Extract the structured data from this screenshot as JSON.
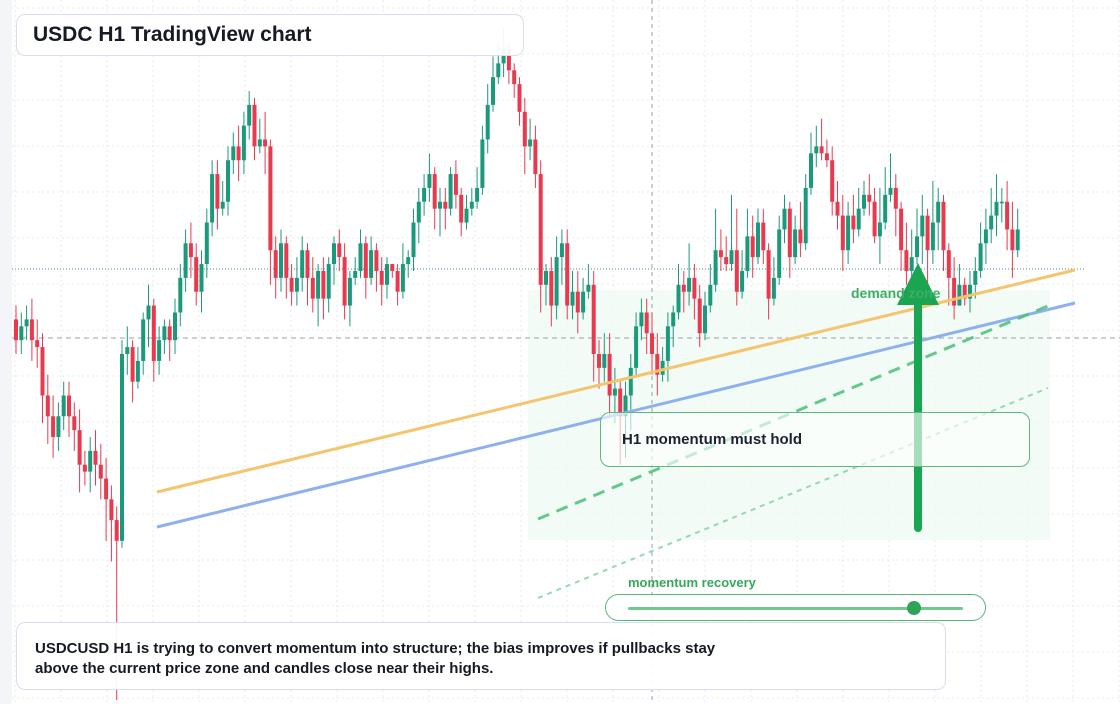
{
  "header": {
    "title": "USDC H1 TradingView chart"
  },
  "annotations": {
    "zone_label": "demand zone",
    "momentum_note": "H1 momentum must hold",
    "recovery_label": "momentum recovery"
  },
  "summary": {
    "line1": "USDCUSD H1 is trying to convert momentum into structure; the bias improves if pullbacks stay",
    "line2": "above the current price zone and candles close near their highs."
  },
  "indicators": {
    "recovery_level": 0.85
  },
  "colors": {
    "bull": "#1a9a7b",
    "bear": "#e8394f",
    "trend_orange": "#f5c46e",
    "trend_blue": "#8fb0ee",
    "support_green": "#4cc07a",
    "arrow_green": "#1aa552",
    "zone_fill": "#eaf8ee"
  },
  "chart_data": {
    "type": "candlestick",
    "title": "USDC H1 TradingView chart",
    "symbol": "USDCUSD",
    "timeframe": "H1",
    "y_units": "relative price index (no axis labels printed)",
    "ylim": [
      0,
      100
    ],
    "grid": true,
    "legend": "none",
    "current_price": 63,
    "candles": [
      [
        55,
        52,
        57,
        50
      ],
      [
        52,
        54,
        56,
        50
      ],
      [
        54,
        55,
        57,
        52
      ],
      [
        55,
        52,
        58,
        49
      ],
      [
        52,
        51,
        55,
        48
      ],
      [
        51,
        44,
        53,
        40
      ],
      [
        44,
        41,
        47,
        37
      ],
      [
        41,
        38,
        44,
        35
      ],
      [
        38,
        41,
        43,
        36
      ],
      [
        41,
        44,
        46,
        39
      ],
      [
        44,
        41,
        46,
        38
      ],
      [
        41,
        39,
        43,
        36
      ],
      [
        39,
        34,
        42,
        30
      ],
      [
        34,
        33,
        36,
        31
      ],
      [
        33,
        36,
        38,
        30
      ],
      [
        36,
        34,
        39,
        31
      ],
      [
        34,
        32,
        37,
        29
      ],
      [
        32,
        29,
        35,
        23
      ],
      [
        29,
        26,
        31,
        20
      ],
      [
        26,
        23,
        28,
        0
      ],
      [
        23,
        50,
        52,
        22
      ],
      [
        50,
        51,
        54,
        47
      ],
      [
        51,
        46,
        52,
        43
      ],
      [
        46,
        49,
        51,
        45
      ],
      [
        49,
        55,
        56,
        47
      ],
      [
        55,
        57,
        60,
        51
      ],
      [
        57,
        49,
        58,
        46
      ],
      [
        49,
        52,
        54,
        47
      ],
      [
        52,
        54,
        55,
        50
      ],
      [
        54,
        52,
        55,
        49
      ],
      [
        52,
        56,
        58,
        50
      ],
      [
        56,
        61,
        63,
        54
      ],
      [
        61,
        66,
        68,
        59
      ],
      [
        66,
        64,
        69,
        61
      ],
      [
        64,
        59,
        66,
        57
      ],
      [
        59,
        63,
        65,
        56
      ],
      [
        63,
        69,
        71,
        61
      ],
      [
        69,
        76,
        78,
        67
      ],
      [
        76,
        71,
        78,
        68
      ],
      [
        71,
        72,
        75,
        70
      ],
      [
        72,
        78,
        80,
        70
      ],
      [
        78,
        80,
        82,
        76
      ],
      [
        80,
        78,
        83,
        75
      ],
      [
        78,
        83,
        85,
        76
      ],
      [
        83,
        86,
        88,
        81
      ],
      [
        86,
        80,
        87,
        78
      ],
      [
        80,
        81,
        84,
        79
      ],
      [
        81,
        80,
        85,
        76
      ],
      [
        80,
        65,
        81,
        60
      ],
      [
        65,
        61,
        67,
        58
      ],
      [
        61,
        66,
        68,
        59
      ],
      [
        66,
        61,
        67,
        58
      ],
      [
        61,
        59,
        63,
        57
      ],
      [
        59,
        61,
        64,
        57
      ],
      [
        61,
        65,
        67,
        59
      ],
      [
        65,
        61,
        66,
        57
      ],
      [
        61,
        58,
        64,
        56
      ],
      [
        58,
        62,
        63,
        54
      ],
      [
        62,
        58,
        64,
        55
      ],
      [
        58,
        63,
        64,
        56
      ],
      [
        63,
        66,
        67,
        60
      ],
      [
        66,
        64,
        68,
        62
      ],
      [
        64,
        57,
        66,
        55
      ],
      [
        57,
        61,
        62,
        54
      ],
      [
        61,
        62,
        64,
        60
      ],
      [
        62,
        66,
        68,
        61
      ],
      [
        66,
        61,
        67,
        58
      ],
      [
        61,
        65,
        67,
        60
      ],
      [
        65,
        62,
        66,
        59
      ],
      [
        62,
        60,
        64,
        57
      ],
      [
        60,
        63,
        64,
        58
      ],
      [
        63,
        62,
        63,
        61
      ],
      [
        62,
        59,
        63,
        57
      ],
      [
        59,
        63,
        66,
        58
      ],
      [
        63,
        64,
        65,
        61
      ],
      [
        64,
        69,
        71,
        62
      ],
      [
        69,
        72,
        74,
        66
      ],
      [
        72,
        74,
        76,
        70
      ],
      [
        74,
        76,
        79,
        72
      ],
      [
        76,
        71,
        77,
        68
      ],
      [
        71,
        72,
        74,
        67
      ],
      [
        72,
        71,
        74,
        68
      ],
      [
        71,
        76,
        77,
        70
      ],
      [
        76,
        73,
        78,
        71
      ],
      [
        73,
        69,
        74,
        67
      ],
      [
        69,
        71,
        73,
        68
      ],
      [
        71,
        72,
        74,
        70
      ],
      [
        72,
        74,
        77,
        71
      ],
      [
        74,
        81,
        83,
        73
      ],
      [
        81,
        86,
        89,
        79
      ],
      [
        86,
        90,
        93,
        85
      ],
      [
        90,
        92,
        95,
        89
      ],
      [
        92,
        94,
        97,
        90
      ],
      [
        94,
        91,
        95,
        89
      ],
      [
        91,
        89,
        92,
        87
      ],
      [
        89,
        85,
        90,
        83
      ],
      [
        85,
        80,
        87,
        76
      ],
      [
        80,
        81,
        84,
        78
      ],
      [
        81,
        76,
        83,
        74
      ],
      [
        76,
        60,
        78,
        56
      ],
      [
        60,
        62,
        63,
        57
      ],
      [
        62,
        57,
        64,
        54
      ],
      [
        57,
        64,
        67,
        55
      ],
      [
        64,
        66,
        68,
        60
      ],
      [
        66,
        57,
        68,
        55
      ],
      [
        57,
        59,
        62,
        55
      ],
      [
        59,
        56,
        62,
        53
      ],
      [
        56,
        59,
        61,
        55
      ],
      [
        59,
        60,
        63,
        58
      ],
      [
        60,
        50,
        62,
        46
      ],
      [
        50,
        48,
        52,
        45
      ],
      [
        48,
        50,
        53,
        46
      ],
      [
        50,
        44,
        53,
        41
      ],
      [
        44,
        45,
        48,
        40
      ],
      [
        45,
        41,
        46,
        34
      ],
      [
        41,
        44,
        46,
        35
      ],
      [
        44,
        48,
        50,
        39
      ],
      [
        48,
        54,
        56,
        47
      ],
      [
        54,
        56,
        58,
        52
      ],
      [
        56,
        53,
        58,
        50
      ],
      [
        53,
        50,
        56,
        47
      ],
      [
        50,
        47,
        53,
        44
      ],
      [
        47,
        49,
        51,
        46
      ],
      [
        49,
        54,
        56,
        46
      ],
      [
        54,
        56,
        57,
        51
      ],
      [
        56,
        60,
        63,
        55
      ],
      [
        60,
        59,
        62,
        56
      ],
      [
        59,
        61,
        66,
        57
      ],
      [
        61,
        58,
        63,
        55
      ],
      [
        58,
        53,
        60,
        51
      ],
      [
        53,
        57,
        59,
        52
      ],
      [
        57,
        60,
        63,
        56
      ],
      [
        60,
        65,
        71,
        59
      ],
      [
        65,
        64,
        68,
        62
      ],
      [
        64,
        63,
        67,
        62
      ],
      [
        63,
        65,
        73,
        62
      ],
      [
        65,
        59,
        71,
        57
      ],
      [
        59,
        62,
        65,
        58
      ],
      [
        62,
        67,
        71,
        61
      ],
      [
        67,
        64,
        70,
        61
      ],
      [
        64,
        69,
        71,
        63
      ],
      [
        69,
        65,
        71,
        63
      ],
      [
        65,
        58,
        66,
        55
      ],
      [
        58,
        61,
        64,
        57
      ],
      [
        61,
        68,
        70,
        60
      ],
      [
        68,
        71,
        73,
        66
      ],
      [
        71,
        64,
        72,
        61
      ],
      [
        64,
        68,
        70,
        63
      ],
      [
        68,
        66,
        72,
        64
      ],
      [
        66,
        74,
        76,
        65
      ],
      [
        74,
        79,
        82,
        73
      ],
      [
        79,
        80,
        83,
        77
      ],
      [
        80,
        79,
        84,
        78
      ],
      [
        79,
        78,
        81,
        77
      ],
      [
        78,
        72,
        80,
        70
      ],
      [
        72,
        70,
        75,
        68
      ],
      [
        70,
        65,
        73,
        62
      ],
      [
        65,
        70,
        72,
        63
      ],
      [
        70,
        68,
        73,
        66
      ],
      [
        68,
        71,
        74,
        67
      ],
      [
        71,
        73,
        75,
        70
      ],
      [
        73,
        72,
        76,
        70
      ],
      [
        72,
        67,
        74,
        66
      ],
      [
        67,
        69,
        74,
        63
      ],
      [
        69,
        73,
        77,
        68
      ],
      [
        73,
        74,
        79,
        72
      ],
      [
        74,
        71,
        76,
        67
      ],
      [
        71,
        65,
        72,
        62
      ],
      [
        65,
        62,
        69,
        60
      ],
      [
        62,
        64,
        68,
        60
      ],
      [
        64,
        67,
        71,
        63
      ],
      [
        67,
        70,
        73,
        63
      ],
      [
        70,
        65,
        71,
        60
      ],
      [
        65,
        69,
        75,
        63
      ],
      [
        69,
        72,
        74,
        65
      ],
      [
        72,
        65,
        73,
        62
      ],
      [
        65,
        61,
        66,
        57
      ],
      [
        61,
        57,
        64,
        55
      ],
      [
        57,
        60,
        63,
        57
      ],
      [
        60,
        58,
        61,
        57
      ],
      [
        58,
        60,
        62,
        56
      ],
      [
        60,
        62,
        64,
        58
      ],
      [
        62,
        66,
        69,
        61
      ],
      [
        66,
        68,
        71,
        63
      ],
      [
        68,
        70,
        74,
        66
      ],
      [
        70,
        72,
        76,
        67
      ],
      [
        72,
        72,
        74,
        69
      ],
      [
        72,
        68,
        75,
        65
      ],
      [
        68,
        65,
        72,
        61
      ],
      [
        65,
        68,
        71,
        64
      ]
    ]
  }
}
